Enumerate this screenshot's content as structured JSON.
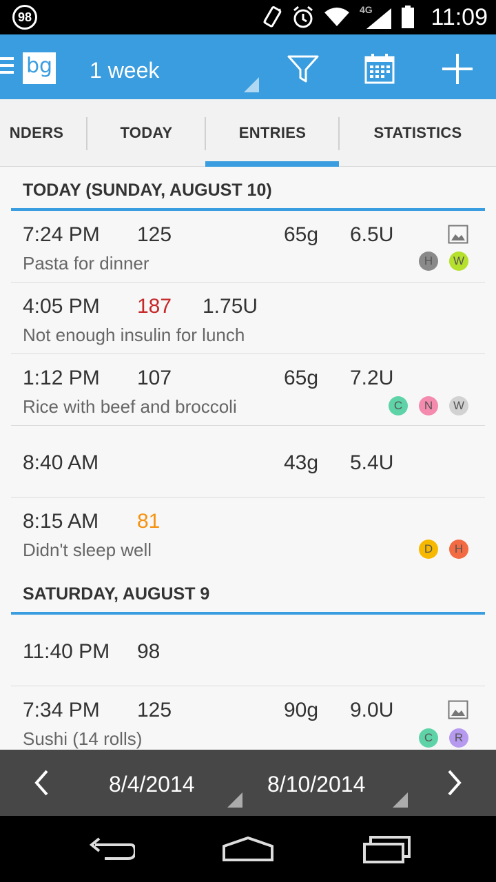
{
  "status_bar": {
    "notification_badge": "98",
    "network_label": "4G",
    "time": "11:09",
    "icons": [
      "vibrate-icon",
      "alarm-icon",
      "wifi-icon",
      "signal-icon",
      "battery-icon"
    ]
  },
  "action_bar": {
    "logo_text": "bg",
    "range_label": "1 week",
    "actions": [
      "filter-icon",
      "calendar-icon",
      "add-icon"
    ],
    "accent_color": "#3a9ddf"
  },
  "tabs": [
    {
      "label": "NDERS"
    },
    {
      "label": "TODAY"
    },
    {
      "label": "ENTRIES",
      "selected": true
    },
    {
      "label": "STATISTICS"
    }
  ],
  "sections": [
    {
      "header": "TODAY (SUNDAY, AUGUST 10)",
      "entries": [
        {
          "time": "7:24 PM",
          "bg": "125",
          "carbs": "65g",
          "insulin": "6.5U",
          "note": "Pasta for dinner",
          "has_photo": true,
          "tags": [
            "H",
            "W"
          ]
        },
        {
          "time": "4:05 PM",
          "bg": "187",
          "bg_color": "#c62828",
          "insulin_extra": "1.75U",
          "note": "Not enough insulin for lunch",
          "tags": []
        },
        {
          "time": "1:12 PM",
          "bg": "107",
          "carbs": "65g",
          "insulin": "7.2U",
          "note": "Rice with beef and  broccoli",
          "tags": [
            "C",
            "N",
            "W"
          ]
        },
        {
          "time": "8:40 AM",
          "carbs": "43g",
          "insulin": "5.4U",
          "tags": []
        },
        {
          "time": "8:15 AM",
          "bg": "81",
          "bg_color": "#f5920f",
          "note": "Didn't sleep well",
          "tags": [
            "D",
            "H"
          ]
        }
      ]
    },
    {
      "header": "SATURDAY, AUGUST 9",
      "entries": [
        {
          "time": "11:40 PM",
          "bg": "98",
          "tags": []
        },
        {
          "time": "7:34 PM",
          "bg": "125",
          "carbs": "90g",
          "insulin": "9.0U",
          "note": "Sushi (14 rolls)",
          "has_photo": true,
          "tags": [
            "C",
            "R"
          ]
        }
      ]
    }
  ],
  "tag_colors": {
    "H1": "#8a8a8a",
    "W1": "#b5e02c",
    "C": "#5fd3a8",
    "N": "#f48aad",
    "W2": "#d2d2d2",
    "D": "#f7b900",
    "H2": "#f26b43",
    "R": "#b59af0"
  },
  "date_bar": {
    "start_date": "8/4/2014",
    "end_date": "8/10/2014",
    "prev": "chevron-left-icon",
    "next": "chevron-right-icon"
  },
  "nav_bar": [
    "back-icon",
    "home-icon",
    "recents-icon"
  ]
}
